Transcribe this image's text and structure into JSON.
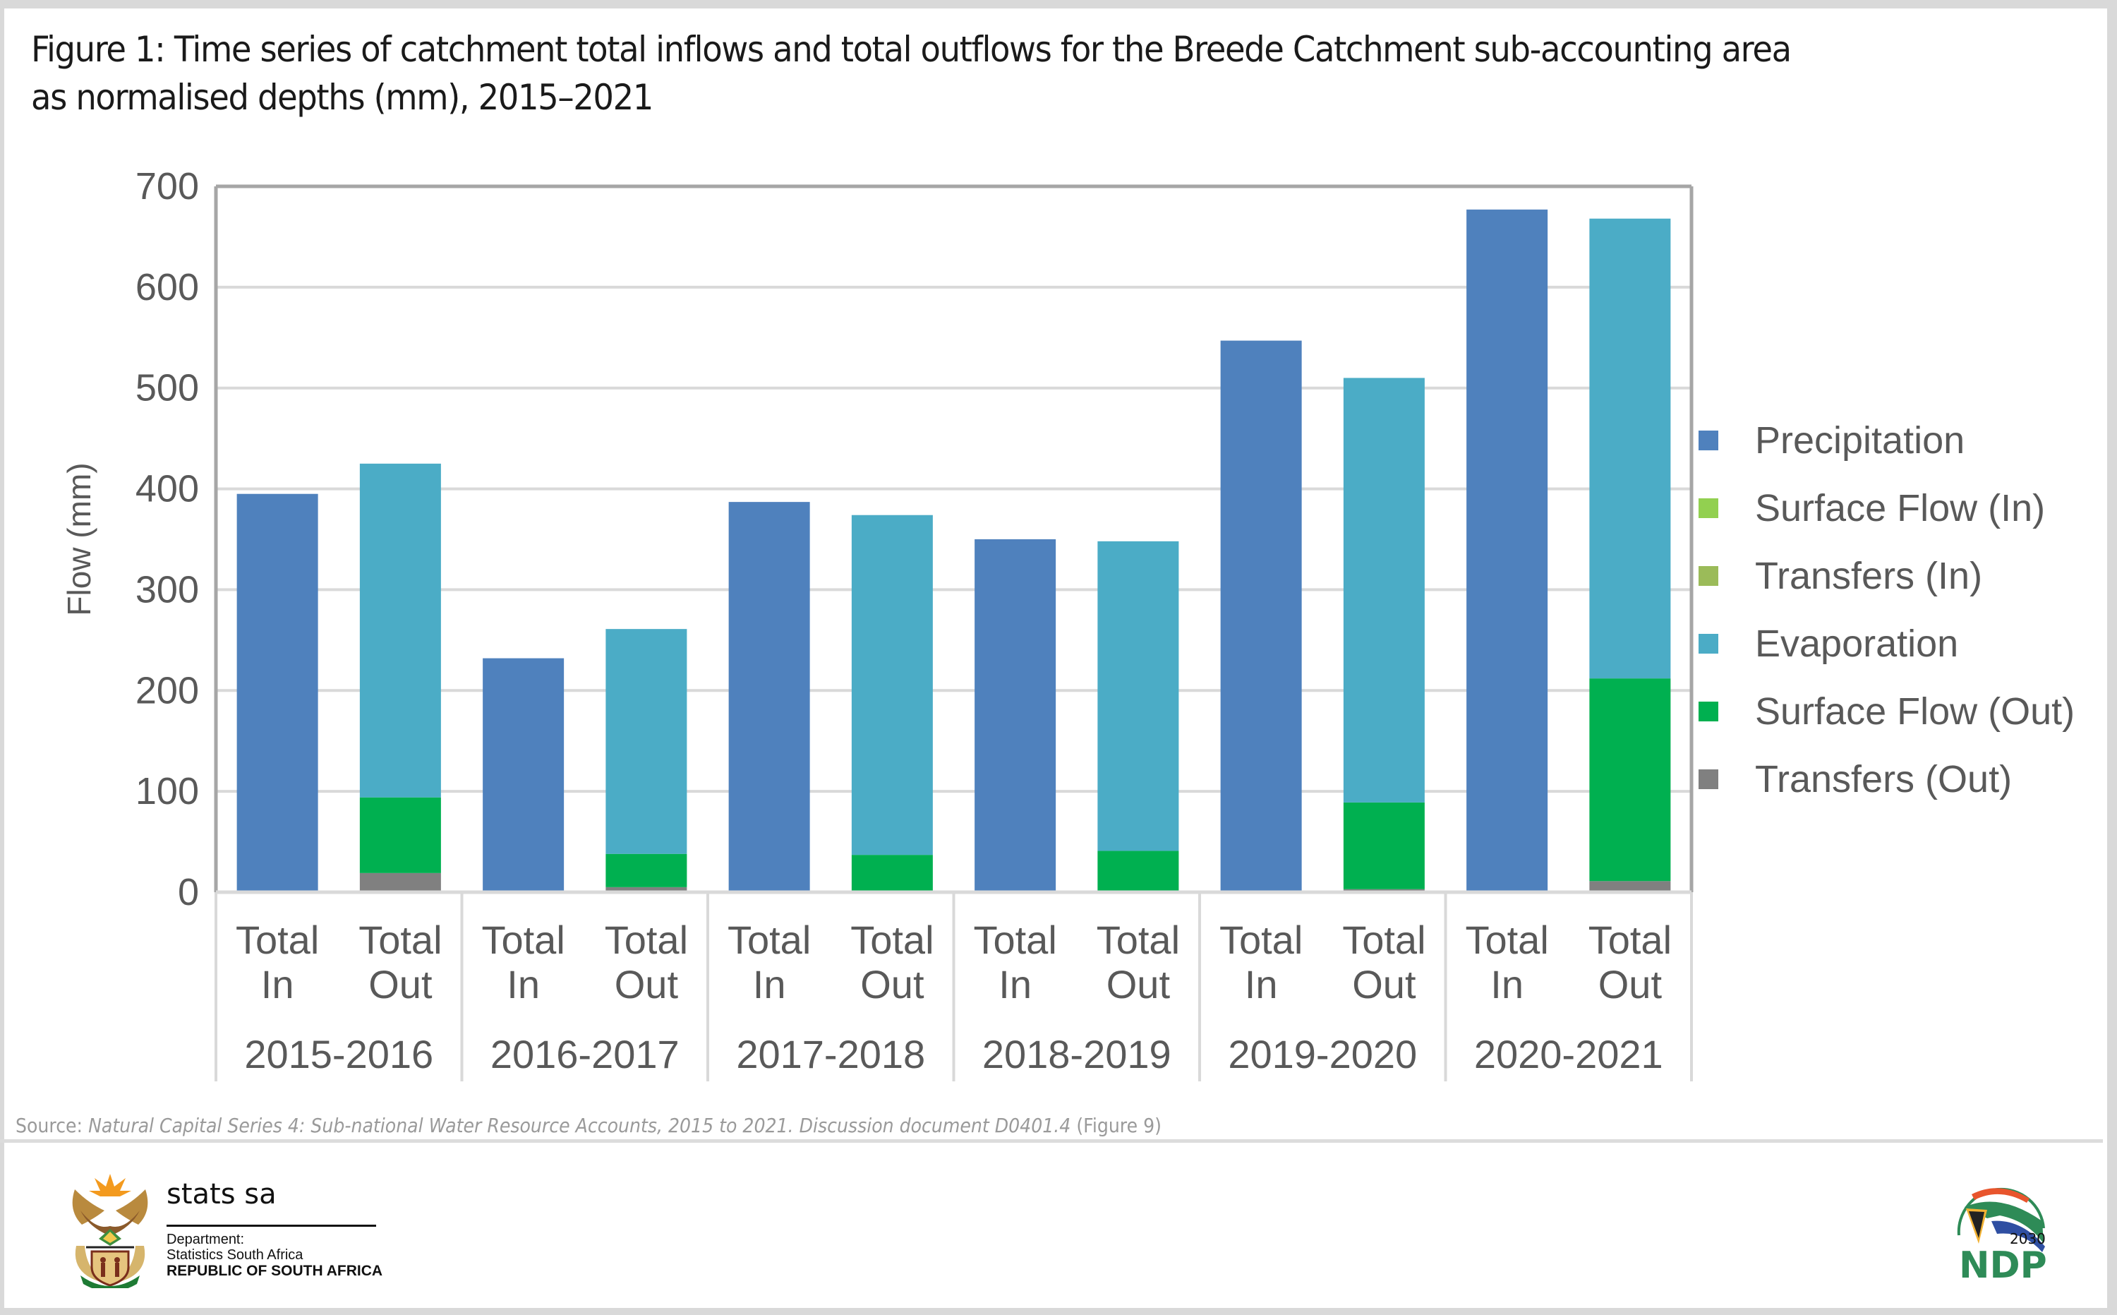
{
  "figure": {
    "title_line1": "Figure 1: Time series of catchment total inflows and total outflows for the Breede Catchment sub-accounting area",
    "title_line2": "as normalised depths (mm), 2015–2021"
  },
  "source": {
    "prefix": "Source: ",
    "citation": "Natural Capital Series 4: Sub-national Water Resource Accounts, 2015 to 2021. Discussion document D0401.4",
    "suffix": " (Figure 9)"
  },
  "footer": {
    "statssa_wordmark": "stats sa",
    "statssa_dept_line1": "Department:",
    "statssa_dept_line2": "Statistics South Africa",
    "statssa_country": "REPUBLIC OF SOUTH AFRICA",
    "coat_of_arms_motto": "!KE E: /XARRA //KE",
    "ndp_year": "2030",
    "ndp_text": "NDP"
  },
  "chart_data": {
    "type": "bar",
    "stacked": true,
    "title": "Figure 1: Time series of catchment total inflows and total outflows for the Breede Catchment sub-accounting area as normalised depths (mm), 2015–2021",
    "xlabel": "",
    "ylabel": "Flow (mm)",
    "ylim": [
      0,
      700
    ],
    "yticks": [
      0,
      100,
      200,
      300,
      400,
      500,
      600,
      700
    ],
    "grid": true,
    "legend_position": "right",
    "groups": [
      "2015-2016",
      "2016-2017",
      "2017-2018",
      "2018-2019",
      "2019-2020",
      "2020-2021"
    ],
    "subcategories": [
      {
        "line1": "Total",
        "line2": "In"
      },
      {
        "line1": "Total",
        "line2": "Out"
      }
    ],
    "categories": [
      "2015-2016 Total In",
      "2015-2016 Total Out",
      "2016-2017 Total In",
      "2016-2017 Total Out",
      "2017-2018 Total In",
      "2017-2018 Total Out",
      "2018-2019 Total In",
      "2018-2019 Total Out",
      "2019-2020 Total In",
      "2019-2020 Total Out",
      "2020-2021 Total In",
      "2020-2021 Total Out"
    ],
    "series": [
      {
        "name": "Precipitation",
        "color": "#4F81BD",
        "values": [
          395,
          0,
          232,
          0,
          387,
          0,
          350,
          0,
          547,
          0,
          677,
          0
        ]
      },
      {
        "name": "Surface Flow (In)",
        "color": "#92D050",
        "values": [
          0,
          0,
          0,
          0,
          0,
          0,
          0,
          0,
          0,
          0,
          0,
          0
        ]
      },
      {
        "name": "Transfers (In)",
        "color": "#9BBB59",
        "values": [
          0,
          0,
          0,
          0,
          0,
          0,
          0,
          0,
          0,
          0,
          0,
          0
        ]
      },
      {
        "name": "Transfers (Out)",
        "color": "#808080",
        "values": [
          0,
          19,
          0,
          5,
          0,
          0,
          0,
          0,
          0,
          3,
          0,
          11
        ]
      },
      {
        "name": "Surface Flow (Out)",
        "color": "#00B050",
        "values": [
          0,
          75,
          0,
          33,
          0,
          37,
          0,
          41,
          0,
          86,
          0,
          201
        ]
      },
      {
        "name": "Evaporation",
        "color": "#4BACC6",
        "values": [
          0,
          331,
          0,
          223,
          0,
          337,
          0,
          307,
          0,
          421,
          0,
          456
        ]
      }
    ],
    "legend_order": [
      "Precipitation",
      "Surface Flow (In)",
      "Transfers (In)",
      "Evaporation",
      "Surface Flow (Out)",
      "Transfers (Out)"
    ]
  }
}
